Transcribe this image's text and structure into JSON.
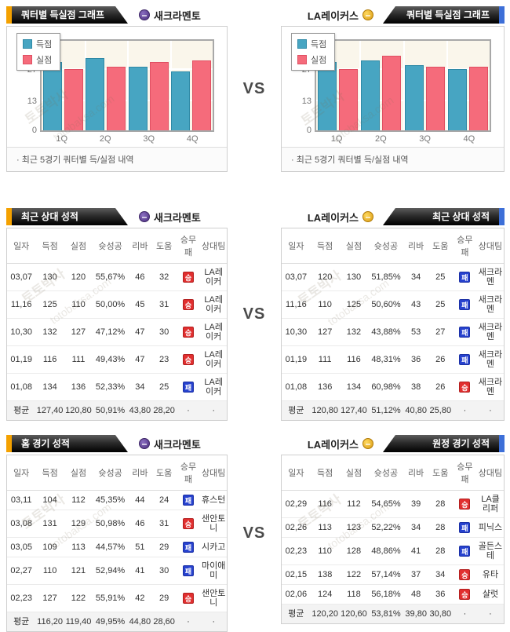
{
  "vs_label": "VS",
  "watermark": {
    "korean": "토토박사",
    "domain": "totobaksa.com"
  },
  "teams": {
    "left": "새크라멘토",
    "right": "LA레이커스"
  },
  "charts": {
    "title": "쿼터별 득실점 그래프",
    "footnote": "· 최근 5경기 쿼터별 득/실점 내역"
  },
  "chart_data": [
    {
      "type": "bar",
      "team": "새크라멘토",
      "title": "쿼터별 득실점 그래프",
      "categories": [
        "1Q",
        "2Q",
        "3Q",
        "4Q"
      ],
      "series": [
        {
          "name": "득점",
          "values": [
            30.4,
            32.4,
            28.6,
            26.4
          ]
        },
        {
          "name": "실점",
          "values": [
            27.4,
            28.4,
            30.4,
            31.2
          ]
        }
      ],
      "ylim": [
        0,
        40
      ],
      "yticks": [
        0,
        13,
        27,
        40
      ],
      "legend_position": "top-left",
      "grid": true
    },
    {
      "type": "bar",
      "team": "LA레이커스",
      "title": "쿼터별 득실점 그래프",
      "categories": [
        "1Q",
        "2Q",
        "3Q",
        "4Q"
      ],
      "series": [
        {
          "name": "득점",
          "values": [
            30.4,
            31.4,
            29.2,
            27.4
          ]
        },
        {
          "name": "실점",
          "values": [
            27.4,
            33.4,
            28.4,
            28.4
          ]
        }
      ],
      "ylim": [
        0,
        40
      ],
      "yticks": [
        0,
        13,
        27,
        40
      ],
      "legend_position": "top-left",
      "grid": true
    }
  ],
  "colors": {
    "scored_bar": "#47A5C2",
    "allowed_bar": "#F56B7B",
    "accent_orange": "#F4A100",
    "accent_blue": "#3D6FD8",
    "win_badge": "#E12F2F",
    "loss_badge": "#2742CE"
  },
  "tables": {
    "columns": [
      "일자",
      "득점",
      "실점",
      "슛성공",
      "리바",
      "도움",
      "승무패",
      "상대팀"
    ],
    "h2h_left": {
      "title": "최근 상대 성적",
      "team": "새크라멘토",
      "rows": [
        [
          "03,07",
          "130",
          "120",
          "55,67%",
          "46",
          "32",
          "승",
          "LA레이커"
        ],
        [
          "11,16",
          "125",
          "110",
          "50,00%",
          "45",
          "31",
          "승",
          "LA레이커"
        ],
        [
          "10,30",
          "132",
          "127",
          "47,12%",
          "47",
          "30",
          "승",
          "LA레이커"
        ],
        [
          "01,19",
          "116",
          "111",
          "49,43%",
          "47",
          "23",
          "승",
          "LA레이커"
        ],
        [
          "01,08",
          "134",
          "136",
          "52,33%",
          "34",
          "25",
          "패",
          "LA레이커"
        ]
      ],
      "avg": [
        "평균",
        "127,40",
        "120,80",
        "50,91%",
        "43,80",
        "28,20",
        "·",
        "·"
      ]
    },
    "h2h_right": {
      "title": "최근 상대 성적",
      "team": "LA레이커스",
      "rows": [
        [
          "03,07",
          "120",
          "130",
          "51,85%",
          "34",
          "25",
          "패",
          "새크라멘"
        ],
        [
          "11,16",
          "110",
          "125",
          "50,60%",
          "43",
          "25",
          "패",
          "새크라멘"
        ],
        [
          "10,30",
          "127",
          "132",
          "43,88%",
          "53",
          "27",
          "패",
          "새크라멘"
        ],
        [
          "01,19",
          "111",
          "116",
          "48,31%",
          "36",
          "26",
          "패",
          "새크라멘"
        ],
        [
          "01,08",
          "136",
          "134",
          "60,98%",
          "38",
          "26",
          "승",
          "새크라멘"
        ]
      ],
      "avg": [
        "평균",
        "120,80",
        "127,40",
        "51,12%",
        "40,80",
        "25,80",
        "·",
        "·"
      ]
    },
    "home_left": {
      "title": "홈 경기 성적",
      "team": "새크라멘토",
      "rows": [
        [
          "03,11",
          "104",
          "112",
          "45,35%",
          "44",
          "24",
          "패",
          "휴스턴"
        ],
        [
          "03,08",
          "131",
          "129",
          "50,98%",
          "46",
          "31",
          "승",
          "샌안토니"
        ],
        [
          "03,05",
          "109",
          "113",
          "44,57%",
          "51",
          "29",
          "패",
          "시카고"
        ],
        [
          "02,27",
          "110",
          "121",
          "52,94%",
          "41",
          "30",
          "패",
          "마이애미"
        ],
        [
          "02,23",
          "127",
          "122",
          "55,91%",
          "42",
          "29",
          "승",
          "샌안토니"
        ]
      ],
      "avg": [
        "평균",
        "116,20",
        "119,40",
        "49,95%",
        "44,80",
        "28,60",
        "·",
        "·"
      ]
    },
    "away_right": {
      "title": "원정 경기 성적",
      "team": "LA레이커스",
      "rows": [
        [
          "02,29",
          "116",
          "112",
          "54,65%",
          "39",
          "28",
          "승",
          "LA클리퍼"
        ],
        [
          "02,26",
          "113",
          "123",
          "52,22%",
          "34",
          "28",
          "패",
          "피닉스"
        ],
        [
          "02,23",
          "110",
          "128",
          "48,86%",
          "41",
          "28",
          "패",
          "골든스테"
        ],
        [
          "02,15",
          "138",
          "122",
          "57,14%",
          "37",
          "34",
          "승",
          "유타"
        ],
        [
          "02,06",
          "124",
          "118",
          "56,18%",
          "48",
          "36",
          "승",
          "샬럿"
        ]
      ],
      "avg": [
        "평균",
        "120,20",
        "120,60",
        "53,81%",
        "39,80",
        "30,80",
        "·",
        "·"
      ]
    }
  }
}
